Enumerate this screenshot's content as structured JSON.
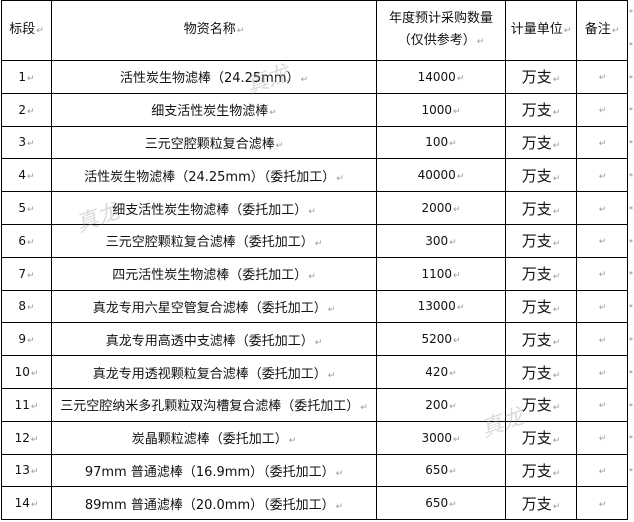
{
  "table": {
    "headers": {
      "index": "标段",
      "name": "物资名称",
      "qty_line1": "年度预计采购数量",
      "qty_line2": "（仅供参考）",
      "unit": "计量单位",
      "remark": "备注"
    },
    "rows": [
      {
        "index": "1",
        "name": "活性炭生物滤棒（24.25mm）",
        "qty": "14000",
        "unit": "万支",
        "remark": ""
      },
      {
        "index": "2",
        "name": "细支活性炭生物滤棒",
        "qty": "1000",
        "unit": "万支",
        "remark": ""
      },
      {
        "index": "3",
        "name": "三元空腔颗粒复合滤棒",
        "qty": "100",
        "unit": "万支",
        "remark": ""
      },
      {
        "index": "4",
        "name": "活性炭生物滤棒（24.25mm）（委托加工）",
        "qty": "40000",
        "unit": "万支",
        "remark": ""
      },
      {
        "index": "5",
        "name": "细支活性炭生物滤棒（委托加工）",
        "qty": "2000",
        "unit": "万支",
        "remark": ""
      },
      {
        "index": "6",
        "name": "三元空腔颗粒复合滤棒（委托加工）",
        "qty": "300",
        "unit": "万支",
        "remark": ""
      },
      {
        "index": "7",
        "name": "四元活性炭生物滤棒（委托加工）",
        "qty": "1100",
        "unit": "万支",
        "remark": ""
      },
      {
        "index": "8",
        "name": "真龙专用六星空管复合滤棒（委托加工）",
        "qty": "13000",
        "unit": "万支",
        "remark": ""
      },
      {
        "index": "9",
        "name": "真龙专用高透中支滤棒（委托加工）",
        "qty": "5200",
        "unit": "万支",
        "remark": ""
      },
      {
        "index": "10",
        "name": "真龙专用透视颗粒复合滤棒（委托加工）",
        "qty": "420",
        "unit": "万支",
        "remark": ""
      },
      {
        "index": "11",
        "name": "三元空腔纳米多孔颗粒双沟槽复合滤棒（委托加工）",
        "qty": "200",
        "unit": "万支",
        "remark": ""
      },
      {
        "index": "12",
        "name": "炭晶颗粒滤棒（委托加工）",
        "qty": "3000",
        "unit": "万支",
        "remark": ""
      },
      {
        "index": "13",
        "name": "97mm 普通滤棒（16.9mm）（委托加工）",
        "qty": "650",
        "unit": "万支",
        "remark": ""
      },
      {
        "index": "14",
        "name": "89mm 普通滤棒（20.0mm）（委托加工）",
        "qty": "650",
        "unit": "万支",
        "remark": ""
      }
    ]
  },
  "watermark": "真龙"
}
